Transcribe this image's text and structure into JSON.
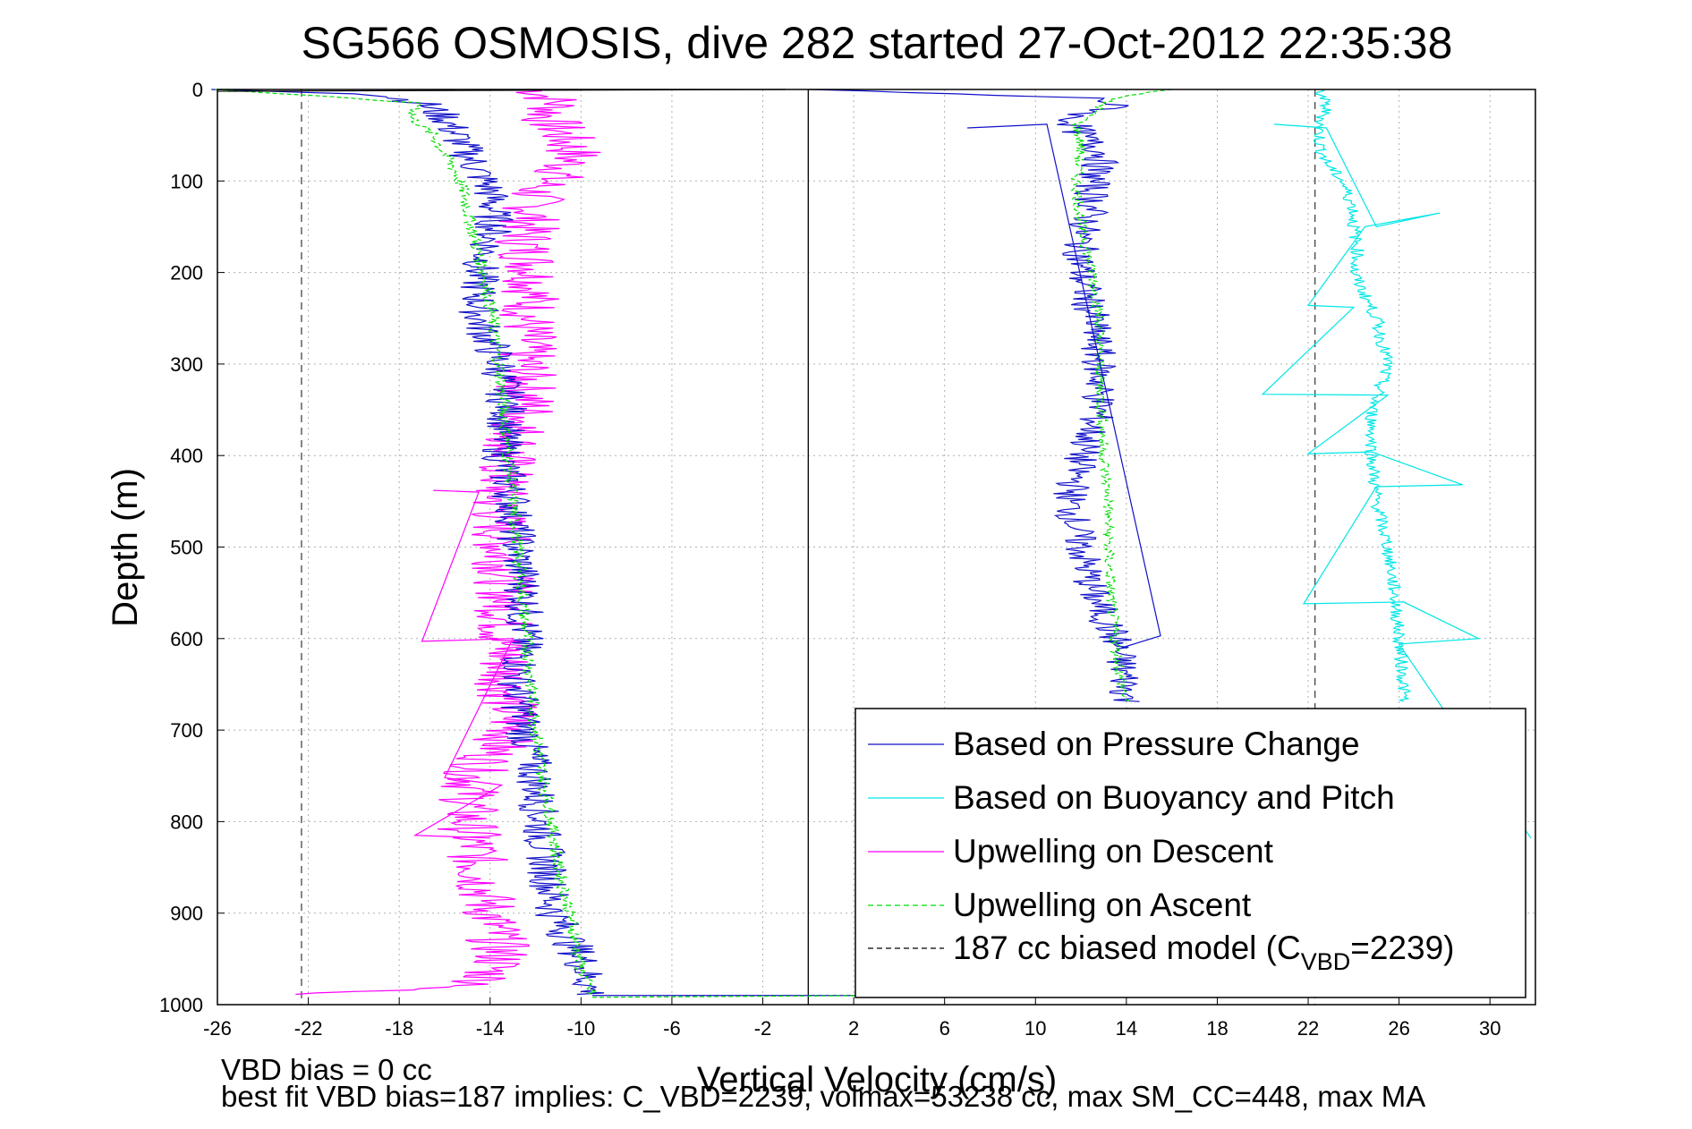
{
  "chart_data": {
    "type": "line",
    "title": "SG566 OSMOSIS, dive 282 started 27-Oct-2012 22:35:38",
    "xlabel": "Vertical Velocity (cm/s)",
    "ylabel": "Depth (m)",
    "xlim": [
      -26,
      32
    ],
    "ylim": [
      0,
      1000
    ],
    "y_reversed": true,
    "grid": true,
    "xticks": [
      -26,
      -22,
      -18,
      -14,
      -10,
      -6,
      -2,
      2,
      6,
      10,
      14,
      18,
      22,
      26,
      30
    ],
    "yticks": [
      0,
      100,
      200,
      300,
      400,
      500,
      600,
      700,
      800,
      900,
      1000
    ],
    "vertical_lines": [
      {
        "x": -22.3,
        "style": "dashed",
        "color": "#444444"
      },
      {
        "x": 0,
        "style": "solid",
        "color": "#000000"
      },
      {
        "x": 22.3,
        "style": "dashed",
        "color": "#444444"
      }
    ],
    "legend_position": "bottom-right",
    "legend": [
      {
        "label": "Based on Pressure Change",
        "color": "#1010c8",
        "style": "solid"
      },
      {
        "label": "Based on Buoyancy and Pitch",
        "color": "#00e6e6",
        "style": "solid"
      },
      {
        "label": "Upwelling on Descent",
        "color": "#ff00ff",
        "style": "solid"
      },
      {
        "label": "Upwelling on Ascent",
        "color": "#00dd00",
        "style": "dashed"
      },
      {
        "label": "187 cc biased model (C",
        "sub": "VBD",
        "label_end": "=2239)",
        "color": "#000000",
        "style": "dashed"
      }
    ],
    "series": [
      {
        "color": "#ff00ff",
        "x_amp": 1.4,
        "depth": [
          0,
          15,
          30,
          50,
          70,
          90,
          110,
          140,
          170,
          200,
          250,
          300,
          350,
          400,
          450,
          500,
          550,
          600,
          650,
          700,
          750,
          800,
          850,
          900,
          950,
          980,
          990
        ],
        "velocity": [
          -12,
          -11,
          -11.5,
          -10.8,
          -10.3,
          -10.8,
          -12,
          -12.2,
          -12.5,
          -12,
          -12.3,
          -12.5,
          -12.3,
          -13.2,
          -13.7,
          -13.5,
          -13.3,
          -13.4,
          -13.3,
          -13,
          -14.8,
          -15,
          -14.5,
          -14,
          -13.5,
          -14.5,
          -24.5
        ]
      },
      {
        "color": "#1010c8",
        "x_amp": 0.9,
        "depth": [
          0,
          5,
          15,
          30,
          50,
          70,
          90,
          110,
          150,
          200,
          250,
          300,
          350,
          400,
          450,
          500,
          550,
          600,
          650,
          700,
          750,
          800,
          850,
          900,
          950,
          990
        ],
        "velocity": [
          -26,
          -19,
          -17,
          -16,
          -15.5,
          -15,
          -14.5,
          -14,
          -13.8,
          -14.5,
          -14.5,
          -13.6,
          -13.2,
          -13.5,
          -13,
          -12.8,
          -12.5,
          -12.5,
          -12.8,
          -12.5,
          -12,
          -11.8,
          -11.5,
          -11.2,
          -10,
          -9.5
        ]
      },
      {
        "color": "#00dd00",
        "dashed": true,
        "x_amp": 0.3,
        "depth": [
          0,
          15,
          30,
          50,
          70,
          90,
          110,
          150,
          200,
          250,
          300,
          400,
          500,
          600,
          700,
          750,
          800,
          850,
          900,
          960,
          990
        ],
        "velocity": [
          -26,
          -17,
          -17.5,
          -16.5,
          -16,
          -15.5,
          -15.2,
          -14.8,
          -14.3,
          -13.9,
          -13.6,
          -13.2,
          -12.8,
          -12.4,
          -12,
          -11.7,
          -11.3,
          -11,
          -10.5,
          -10,
          -9.5
        ]
      },
      {
        "color": "#1010c8",
        "x_amp": 0.8,
        "depth": [
          0,
          10,
          20,
          30,
          50,
          70,
          100,
          130,
          160,
          200,
          250,
          300,
          350,
          400,
          450,
          500,
          550,
          600,
          650,
          670
        ],
        "velocity": [
          0,
          13,
          13.5,
          11.5,
          12,
          13,
          12.5,
          12.5,
          12,
          12,
          12.5,
          12.8,
          12.8,
          12,
          11.5,
          12,
          12.5,
          13.5,
          14,
          14
        ]
      },
      {
        "color": "#00dd00",
        "dashed": true,
        "x_amp": 0.25,
        "depth": [
          0,
          10,
          20,
          40,
          60,
          100,
          150,
          200,
          250,
          300,
          400,
          450,
          500,
          550,
          600,
          650,
          670
        ],
        "velocity": [
          16,
          13.3,
          12.8,
          11.8,
          12,
          11.8,
          12,
          12.5,
          12.8,
          12.8,
          13,
          13.2,
          13.2,
          13.3,
          13.5,
          13.8,
          14
        ]
      },
      {
        "color": "#00e6e6",
        "x_amp": 0.3,
        "depth": [
          0,
          20,
          40,
          60,
          80,
          100,
          130,
          150,
          180,
          200,
          250,
          300,
          350,
          400,
          450,
          500,
          550,
          600,
          650,
          670
        ],
        "velocity": [
          22.5,
          22.8,
          22.5,
          22.5,
          22.8,
          23.5,
          24,
          24,
          24.2,
          24,
          25,
          25.5,
          24.8,
          24.8,
          25,
          25.5,
          25.8,
          26,
          26.2,
          26.2
        ]
      }
    ],
    "spikes": [
      {
        "color": "#00e6e6",
        "points": [
          [
            20.5,
            38
          ],
          [
            22.8,
            42
          ],
          [
            25,
            150
          ],
          [
            27.8,
            135
          ],
          [
            24.5,
            150
          ],
          [
            22,
            236
          ],
          [
            24,
            238
          ],
          [
            20,
            333
          ],
          [
            25.5,
            334
          ],
          [
            22,
            398
          ],
          [
            24.8,
            396
          ],
          [
            28.8,
            432
          ],
          [
            25,
            434
          ],
          [
            21.8,
            562
          ],
          [
            26.2,
            560
          ],
          [
            29.5,
            600
          ],
          [
            26,
            606
          ],
          [
            31.8,
            818
          ]
        ]
      },
      {
        "color": "#1010c8",
        "points": [
          [
            7,
            42
          ],
          [
            10.5,
            38
          ],
          [
            15.5,
            597
          ],
          [
            13.8,
            610
          ]
        ]
      },
      {
        "color": "#ff00ff",
        "points": [
          [
            -16.5,
            438
          ],
          [
            -14.5,
            440
          ],
          [
            -17,
            603
          ],
          [
            -13,
            600
          ],
          [
            -16,
            752
          ],
          [
            -13.5,
            760
          ],
          [
            -17.3,
            815
          ],
          [
            -14,
            818
          ]
        ]
      },
      {
        "color": "#000000",
        "points": [
          [
            -1,
            0
          ],
          [
            -26,
            2
          ]
        ]
      }
    ]
  },
  "footer": {
    "line1": "VBD bias = 0 cc",
    "line2": "best fit VBD bias=187 implies: C_VBD=2239, volmax=53238 cc, max SM_CC=448, max MA"
  }
}
